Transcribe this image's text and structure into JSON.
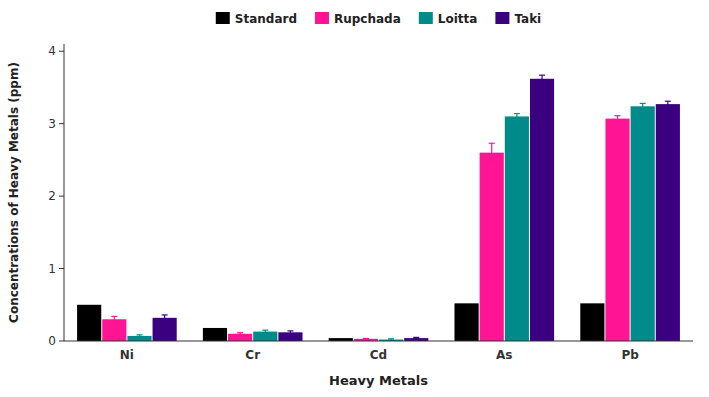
{
  "chart_data": {
    "type": "bar",
    "categories": [
      "Ni",
      "Cr",
      "Cd",
      "As",
      "Pb"
    ],
    "series": [
      {
        "name": "Standard",
        "color": "#000000",
        "values": [
          0.5,
          0.18,
          0.04,
          0.52,
          0.52
        ]
      },
      {
        "name": "Rupchada",
        "color": "#FF1493",
        "values": [
          0.3,
          0.1,
          0.03,
          2.6,
          3.07
        ],
        "errors": [
          0.04,
          0.015,
          0.005,
          0.13,
          0.04
        ]
      },
      {
        "name": "Loitta",
        "color": "#008B8B",
        "values": [
          0.07,
          0.13,
          0.02,
          3.1,
          3.24
        ],
        "errors": [
          0.015,
          0.02,
          0.01,
          0.04,
          0.04
        ]
      },
      {
        "name": "Taki",
        "color": "#3B0080",
        "values": [
          0.32,
          0.12,
          0.04,
          3.62,
          3.27
        ],
        "errors": [
          0.04,
          0.02,
          0.01,
          0.05,
          0.04
        ]
      }
    ],
    "xlabel": "Heavy Metals",
    "ylabel": "Concentrations of Heavy Metals (ppm)",
    "ylim": [
      0,
      4.1
    ],
    "yticks": [
      0,
      1,
      2,
      3,
      4
    ],
    "grid": false,
    "legend": "top"
  }
}
